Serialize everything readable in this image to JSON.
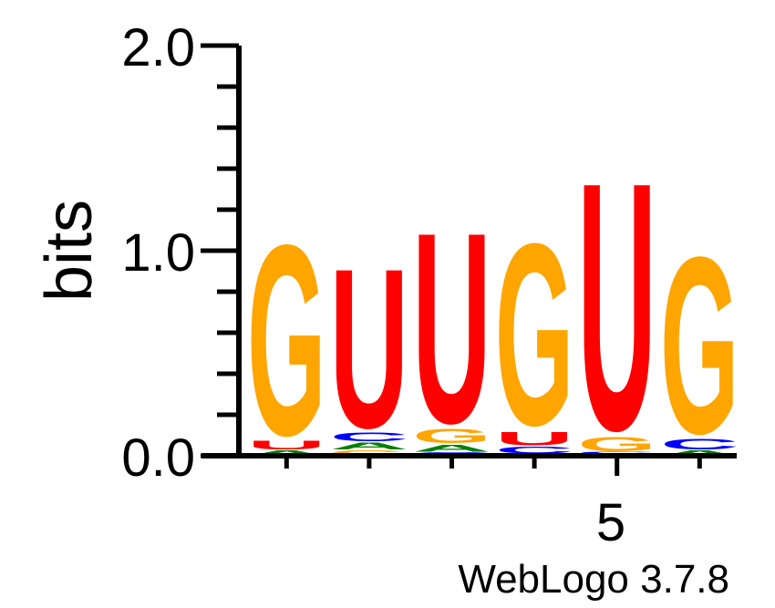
{
  "chart_data": {
    "type": "sequence-logo",
    "ylabel": "bits",
    "ylim": [
      0,
      2.0
    ],
    "y_ticks": [
      "0.0",
      "1.0",
      "2.0"
    ],
    "x_ticks": [
      {
        "position": 5,
        "label": "5"
      }
    ],
    "credit": "WebLogo 3.7.8",
    "colors": {
      "G": "#FFA500",
      "U": "#FF0000",
      "C": "#0000FF",
      "A": "#008000"
    },
    "positions": [
      {
        "position": 1,
        "letters": [
          {
            "letter": "A",
            "bits": 0.03
          },
          {
            "letter": "U",
            "bits": 0.05
          },
          {
            "letter": "G",
            "bits": 1.1
          }
        ]
      },
      {
        "position": 2,
        "letters": [
          {
            "letter": "G",
            "bits": 0.03
          },
          {
            "letter": "A",
            "bits": 0.04
          },
          {
            "letter": "C",
            "bits": 0.05
          },
          {
            "letter": "U",
            "bits": 0.92
          }
        ]
      },
      {
        "position": 3,
        "letters": [
          {
            "letter": "C",
            "bits": 0.02
          },
          {
            "letter": "A",
            "bits": 0.04
          },
          {
            "letter": "G",
            "bits": 0.08
          },
          {
            "letter": "U",
            "bits": 1.1
          }
        ]
      },
      {
        "position": 4,
        "letters": [
          {
            "letter": "G",
            "bits": 0.01
          },
          {
            "letter": "C",
            "bits": 0.04
          },
          {
            "letter": "U",
            "bits": 0.08
          },
          {
            "letter": "G",
            "bits": 1.05
          }
        ]
      },
      {
        "position": 5,
        "letters": [
          {
            "letter": "A",
            "bits": 0.01
          },
          {
            "letter": "C",
            "bits": 0.01
          },
          {
            "letter": "G",
            "bits": 0.08
          },
          {
            "letter": "U",
            "bits": 1.43
          }
        ]
      },
      {
        "position": 6,
        "letters": [
          {
            "letter": "A",
            "bits": 0.03
          },
          {
            "letter": "C",
            "bits": 0.06
          },
          {
            "letter": "G",
            "bits": 1.02
          }
        ]
      }
    ]
  }
}
